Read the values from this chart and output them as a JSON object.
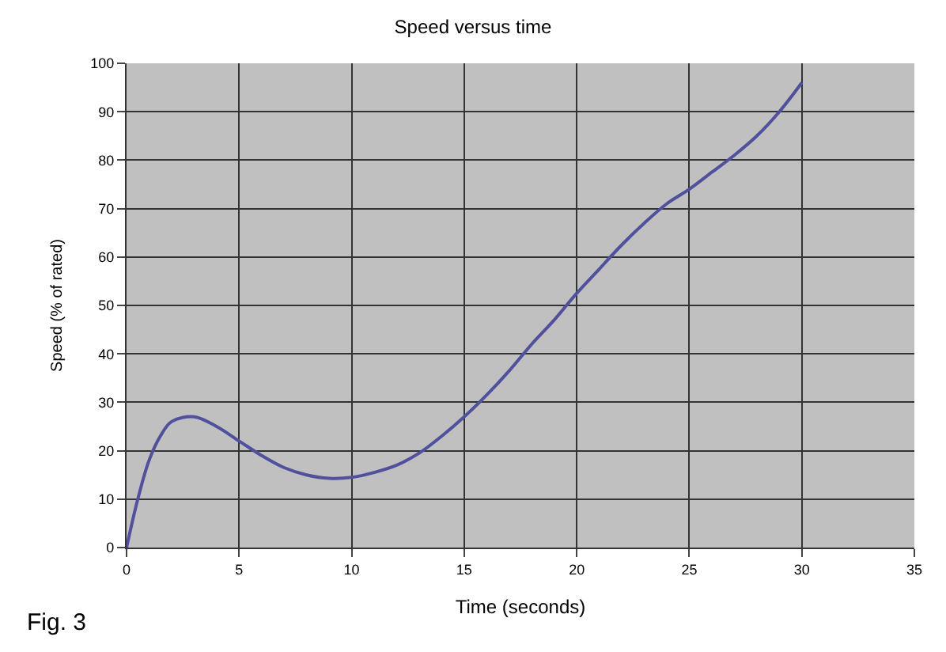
{
  "chart_data": {
    "type": "line",
    "title": "Speed versus time",
    "xlabel": "Time (seconds)",
    "ylabel": "Speed (% of rated)",
    "annotations": [
      "Fig. 3"
    ],
    "x": [
      0,
      0.5,
      1,
      1.5,
      2,
      3,
      4,
      5,
      6,
      7,
      8,
      9,
      10,
      11,
      12,
      13,
      14,
      15,
      16,
      17,
      18,
      19,
      20,
      21,
      22,
      23,
      24,
      25,
      26,
      27,
      28,
      29,
      30
    ],
    "series": [
      {
        "color": "#50509c",
        "values": [
          0,
          10,
          18,
          23,
          26,
          27,
          25,
          22,
          19,
          16.5,
          15,
          14.3,
          14.5,
          15.5,
          17,
          19.5,
          23,
          27,
          31.5,
          36.5,
          42,
          47,
          52.5,
          57.5,
          62.5,
          67,
          71,
          74,
          77.5,
          81,
          85,
          90,
          96
        ]
      }
    ],
    "xlim": [
      0,
      35
    ],
    "xticks": [
      0,
      5,
      10,
      15,
      20,
      25,
      30,
      35
    ],
    "ylim": [
      0,
      100
    ],
    "yticks": [
      0,
      10,
      20,
      30,
      40,
      50,
      60,
      70,
      80,
      90,
      100
    ],
    "grid": true,
    "marker": "none",
    "line_style": "solid"
  }
}
